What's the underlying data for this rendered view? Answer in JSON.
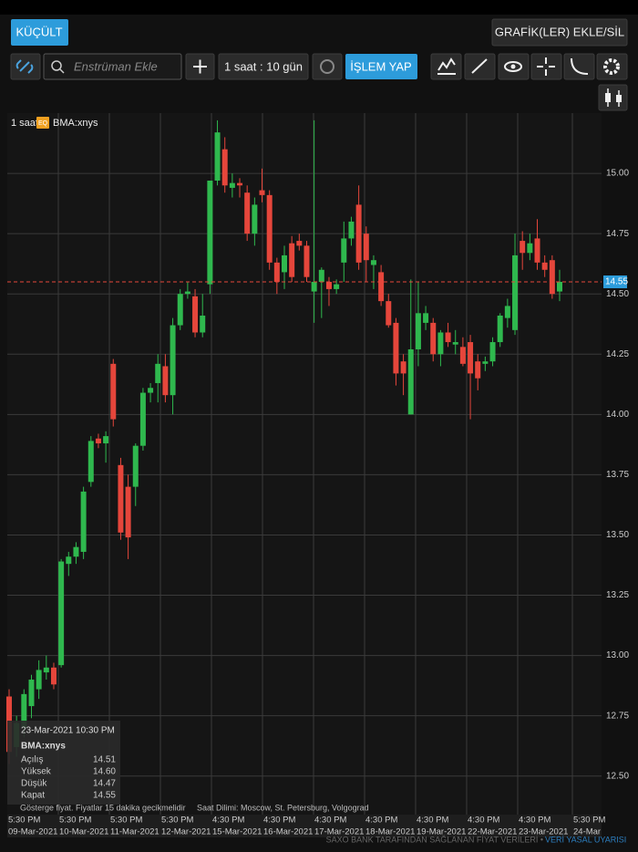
{
  "toolbar": {
    "collapse": "KÜÇÜLT",
    "add_remove_charts": "GRAFİK(LER) EKLE/SİL",
    "search_placeholder": "Enstrüman Ekle",
    "interval": "1 saat : 10 gün",
    "trade": "İŞLEM YAP"
  },
  "chart_data": {
    "type": "candlestick",
    "interval": "1 saat",
    "badge": "EQ",
    "series": [
      {
        "name": "BMA:xnys",
        "up_color": "#2fb84e",
        "down_color": "#e5463b",
        "open": [
          12.83,
          12.62,
          12.7,
          12.79,
          12.86,
          12.93,
          12.95,
          12.96,
          13.38,
          13.41,
          13.43,
          13.72,
          13.9,
          13.88,
          14.21,
          13.79,
          13.7,
          13.7,
          13.87,
          14.09,
          14.13,
          14.2,
          14.08,
          14.37,
          14.5,
          14.49,
          14.34,
          14.54,
          14.97,
          15.1,
          14.94,
          14.96,
          14.92,
          14.75,
          14.93,
          14.91,
          14.63,
          14.59,
          14.71,
          14.72,
          14.7,
          14.51,
          14.55,
          14.55,
          14.52,
          14.63,
          14.73,
          14.87,
          14.75,
          14.62,
          14.59,
          14.47,
          14.38,
          14.22,
          14.0,
          14.27,
          14.38,
          14.38,
          14.25,
          14.34,
          14.29,
          14.28,
          14.3,
          14.22,
          14.21,
          14.22,
          14.3,
          14.4,
          14.35,
          14.72,
          14.67,
          14.73,
          14.63,
          14.64,
          14.51
        ],
        "high": [
          12.86,
          12.75,
          12.86,
          12.92,
          12.98,
          13.0,
          12.97,
          13.4,
          13.43,
          13.47,
          13.7,
          13.91,
          13.92,
          13.93,
          14.23,
          13.82,
          13.75,
          13.88,
          14.11,
          14.13,
          14.25,
          14.25,
          14.4,
          14.52,
          14.55,
          14.52,
          14.5,
          14.97,
          15.22,
          15.15,
          15.0,
          14.98,
          14.95,
          14.9,
          15.02,
          14.93,
          14.65,
          14.7,
          14.74,
          14.75,
          14.72,
          15.22,
          14.61,
          14.57,
          14.56,
          14.8,
          14.82,
          14.95,
          14.78,
          14.66,
          14.62,
          14.5,
          14.4,
          14.25,
          14.56,
          14.55,
          14.45,
          14.4,
          14.35,
          14.38,
          14.35,
          14.32,
          14.33,
          14.25,
          14.24,
          14.32,
          14.42,
          14.48,
          14.75,
          14.76,
          14.75,
          14.81,
          14.66,
          14.66,
          14.6
        ],
        "low": [
          12.55,
          12.58,
          12.66,
          12.74,
          12.82,
          12.9,
          12.86,
          12.95,
          13.33,
          13.38,
          13.4,
          13.7,
          13.86,
          13.8,
          13.95,
          13.48,
          13.4,
          13.62,
          13.85,
          14.05,
          14.05,
          14.05,
          14.0,
          14.35,
          14.48,
          14.32,
          14.32,
          14.5,
          14.95,
          14.92,
          14.9,
          14.9,
          14.72,
          14.7,
          14.88,
          14.6,
          14.5,
          14.52,
          14.55,
          14.68,
          14.55,
          14.38,
          14.4,
          14.45,
          14.5,
          14.55,
          14.7,
          14.6,
          14.55,
          14.52,
          14.45,
          14.36,
          14.12,
          14.08,
          14.0,
          14.2,
          14.35,
          14.22,
          14.2,
          14.28,
          14.25,
          14.2,
          13.98,
          14.1,
          14.18,
          14.2,
          14.28,
          14.36,
          14.33,
          14.6,
          14.64,
          14.6,
          14.57,
          14.48,
          14.47
        ],
        "close": [
          12.6,
          12.72,
          12.84,
          12.9,
          12.94,
          12.95,
          12.88,
          13.39,
          13.41,
          13.45,
          13.68,
          13.89,
          13.88,
          13.91,
          13.98,
          13.51,
          13.49,
          13.87,
          14.09,
          14.11,
          14.21,
          14.08,
          14.37,
          14.5,
          14.51,
          14.34,
          14.41,
          14.97,
          15.17,
          14.95,
          14.96,
          14.95,
          14.75,
          14.87,
          14.91,
          14.63,
          14.55,
          14.66,
          14.57,
          14.7,
          14.57,
          14.55,
          14.6,
          14.52,
          14.54,
          14.73,
          14.8,
          14.63,
          14.64,
          14.64,
          14.47,
          14.37,
          14.17,
          14.17,
          14.27,
          14.42,
          14.42,
          14.25,
          14.34,
          14.3,
          14.3,
          14.21,
          14.17,
          14.15,
          14.22,
          14.3,
          14.41,
          14.45,
          14.66,
          14.67,
          14.71,
          14.63,
          14.6,
          14.5,
          14.55
        ]
      }
    ],
    "ylim": [
      12.34,
      15.25
    ],
    "yticks": [
      {
        "value": 12.5,
        "label": "12.50"
      },
      {
        "value": 12.75,
        "label": "12.75"
      },
      {
        "value": 13,
        "label": "13.00"
      },
      {
        "value": 13.25,
        "label": "13.25"
      },
      {
        "value": 13.5,
        "label": "13.50"
      },
      {
        "value": 13.75,
        "label": "13.75"
      },
      {
        "value": 14,
        "label": "14.00"
      },
      {
        "value": 14.25,
        "label": "14.25"
      },
      {
        "value": 14.5,
        "label": "14.50"
      },
      {
        "value": 14.75,
        "label": "14.75"
      },
      {
        "value": 15,
        "label": "15.00"
      }
    ],
    "last_price": {
      "value": 14.55,
      "label": "14.55"
    },
    "xticks": [
      {
        "time": "5:30 PM",
        "date": "09-Mar-2021"
      },
      {
        "time": "5:30 PM",
        "date": "10-Mar-2021"
      },
      {
        "time": "5:30 PM",
        "date": "11-Mar-2021"
      },
      {
        "time": "5:30 PM",
        "date": "12-Mar-2021"
      },
      {
        "time": "4:30 PM",
        "date": "15-Mar-2021"
      },
      {
        "time": "4:30 PM",
        "date": "16-Mar-2021"
      },
      {
        "time": "4:30 PM",
        "date": "17-Mar-2021"
      },
      {
        "time": "4:30 PM",
        "date": "18-Mar-2021"
      },
      {
        "time": "4:30 PM",
        "date": "19-Mar-2021"
      },
      {
        "time": "4:30 PM",
        "date": "22-Mar-2021"
      },
      {
        "time": "4:30 PM",
        "date": "23-Mar-2021"
      },
      {
        "time": "5:30 PM",
        "date": "24-Mar"
      }
    ],
    "grid": true
  },
  "tooltip": {
    "time": "23-Mar-2021 10:30 PM",
    "rows": [
      {
        "label": "Açılış",
        "value": "14.51"
      },
      {
        "label": "Yüksek",
        "value": "14.60"
      },
      {
        "label": "Düşük",
        "value": "14.47"
      },
      {
        "label": "Kapat",
        "value": "14.55"
      }
    ]
  },
  "footer": {
    "note": "Gösterge fiyat. Fiyatlar 15 dakika gecikmelidir",
    "timezone": "Saat Dilimi: Moscow, St. Petersburg, Volgograd",
    "provider": "SAXO BANK TARAFINDAN SAĞLANAN FİYAT VERİLERİ •",
    "disclaimer": "VERİ YASAL UYARISI"
  }
}
